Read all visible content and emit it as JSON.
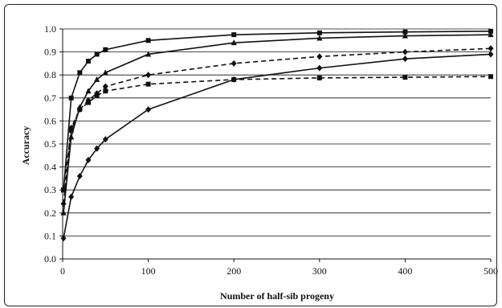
{
  "chart_data": {
    "type": "line",
    "title": "",
    "xlabel": "Number of half-sib progeny",
    "ylabel": "Accuracy",
    "xlim": [
      0,
      500
    ],
    "ylim": [
      0.0,
      1.0
    ],
    "x_ticks": [
      "0",
      "100",
      "200",
      "300",
      "400",
      "500"
    ],
    "y_ticks": [
      "0.0",
      "0.1",
      "0.2",
      "0.3",
      "0.4",
      "0.5",
      "0.6",
      "0.7",
      "0.8",
      "0.9",
      "1.0"
    ],
    "grid": "horizontal",
    "legend": "none",
    "series": [
      {
        "marker": "square",
        "line_style": "solid",
        "x": [
          1,
          10,
          20,
          30,
          40,
          50,
          100,
          200,
          300,
          400,
          500
        ],
        "y": [
          0.3,
          0.7,
          0.81,
          0.86,
          0.89,
          0.91,
          0.95,
          0.975,
          0.983,
          0.987,
          0.99
        ]
      },
      {
        "marker": "triangle",
        "line_style": "solid",
        "x": [
          1,
          10,
          20,
          30,
          40,
          50,
          100,
          200,
          300,
          400,
          500
        ],
        "y": [
          0.2,
          0.53,
          0.66,
          0.73,
          0.78,
          0.81,
          0.89,
          0.94,
          0.96,
          0.97,
          0.975
        ]
      },
      {
        "marker": "diamond",
        "line_style": "dashed",
        "x": [
          1,
          10,
          20,
          30,
          40,
          50,
          100,
          200,
          300,
          400,
          500
        ],
        "y": [
          0.24,
          0.57,
          0.65,
          0.69,
          0.72,
          0.75,
          0.8,
          0.85,
          0.88,
          0.9,
          0.915
        ]
      },
      {
        "marker": "square",
        "line_style": "dashed",
        "x": [
          1,
          10,
          20,
          30,
          40,
          50,
          100,
          200,
          300,
          400,
          500
        ],
        "y": [
          0.3,
          0.56,
          0.65,
          0.68,
          0.71,
          0.73,
          0.76,
          0.78,
          0.787,
          0.79,
          0.793
        ]
      },
      {
        "marker": "diamond",
        "line_style": "solid",
        "x": [
          1,
          10,
          20,
          30,
          40,
          50,
          100,
          200,
          300,
          400,
          500
        ],
        "y": [
          0.09,
          0.27,
          0.36,
          0.43,
          0.48,
          0.52,
          0.65,
          0.78,
          0.83,
          0.87,
          0.89
        ]
      }
    ]
  }
}
